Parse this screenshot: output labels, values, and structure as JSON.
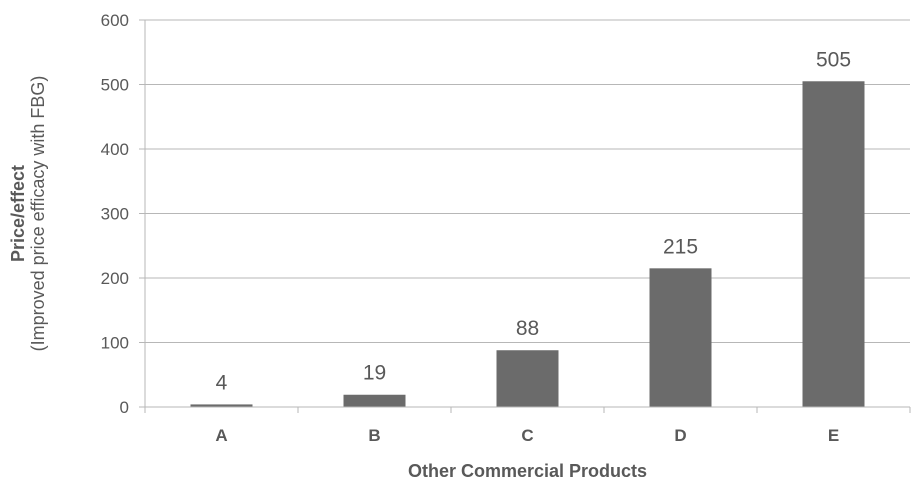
{
  "chart_data": {
    "type": "bar",
    "categories": [
      "A",
      "B",
      "C",
      "D",
      "E"
    ],
    "values": [
      4,
      19,
      88,
      215,
      505
    ],
    "data_labels": [
      "4",
      "19",
      "88",
      "215",
      "505"
    ],
    "xlabel": "Other Commercial Products",
    "ylabel": "Price/effect",
    "ylabel_sub": "(Improved price efficacy with FBG)",
    "ylim": [
      0,
      600
    ],
    "yticks": [
      0,
      100,
      200,
      300,
      400,
      500,
      600
    ],
    "ytick_labels": [
      "0",
      "100",
      "200",
      "300",
      "400",
      "500",
      "600"
    ],
    "grid": true,
    "legend": "none",
    "colors": {
      "bar": "#6b6b6b",
      "grid": "#b7b7b7",
      "text": "#595959"
    }
  }
}
